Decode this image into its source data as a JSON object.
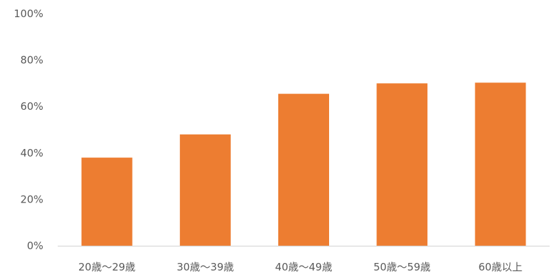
{
  "chart_data": {
    "type": "bar",
    "title": "",
    "xlabel": "",
    "ylabel": "",
    "categories": [
      "20歳～29歳",
      "30歳～39歳",
      "40歳～49歳",
      "50歳～59歳",
      "60歳以上"
    ],
    "values": [
      0.38,
      0.48,
      0.655,
      0.7,
      0.703
    ],
    "ylim": [
      0,
      1
    ],
    "yticks": [
      "0%",
      "20%",
      "40%",
      "60%",
      "80%",
      "100%"
    ],
    "grid": false,
    "legend": "none",
    "bar_color": "#ED7D31",
    "axis_color": "#D9D9D9",
    "label_color": "#595959"
  }
}
